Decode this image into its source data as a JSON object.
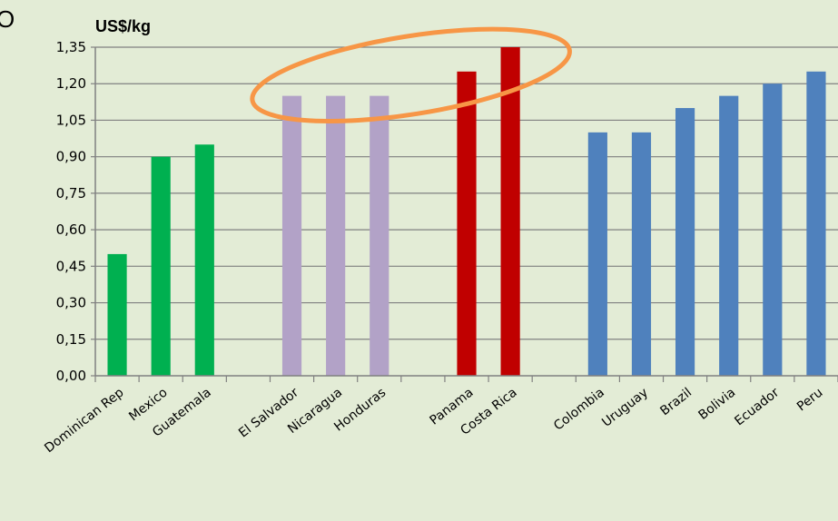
{
  "corner_text": "O",
  "chart_data": {
    "type": "bar",
    "title": "",
    "ylabel": "US$/kg",
    "xlabel": "",
    "ylim": [
      0,
      1.35
    ],
    "yticks": [
      "0,00",
      "0,15",
      "0,30",
      "0,45",
      "0,60",
      "0,75",
      "0,90",
      "1,05",
      "1,20",
      "1,35"
    ],
    "grid": true,
    "legend": "none",
    "categories": [
      "Dominican Rep",
      "Mexico",
      "Guatemala",
      "",
      "El Salvador",
      "Nicaragua",
      "Honduras",
      "",
      "Panama",
      "Costa Rica",
      "",
      "Colombia",
      "Uruguay",
      "Brazil",
      "Bolivia",
      "Ecuador",
      "Peru"
    ],
    "values": [
      0.5,
      0.9,
      0.95,
      null,
      1.15,
      1.15,
      1.15,
      null,
      1.25,
      1.35,
      null,
      1.0,
      1.0,
      1.1,
      1.15,
      1.2,
      1.25
    ],
    "bar_colors": [
      "#00b050",
      "#00b050",
      "#00b050",
      null,
      "#b2a2c7",
      "#b2a2c7",
      "#b2a2c7",
      null,
      "#c00000",
      "#c00000",
      null,
      "#4f81bd",
      "#4f81bd",
      "#4f81bd",
      "#4f81bd",
      "#4f81bd",
      "#4f81bd"
    ],
    "highlight_color": "#f79646"
  }
}
